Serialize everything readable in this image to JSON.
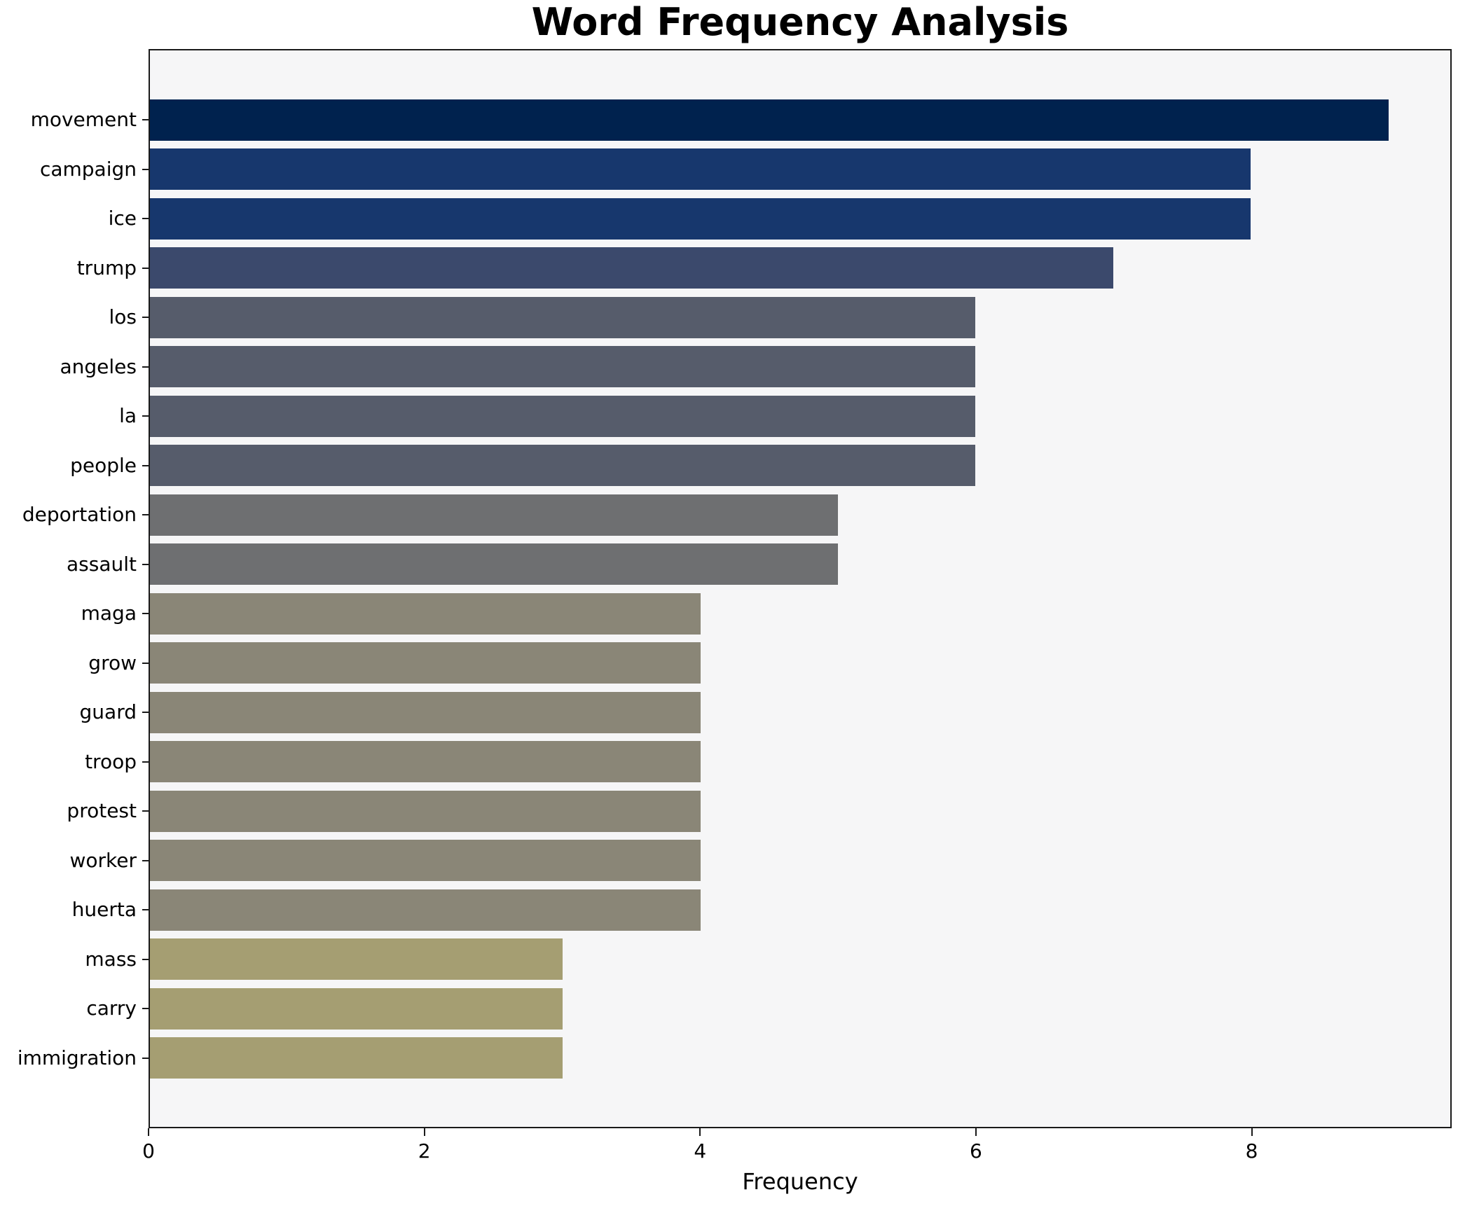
{
  "chart_data": {
    "type": "bar",
    "orientation": "horizontal",
    "title": "Word Frequency Analysis",
    "xlabel": "Frequency",
    "ylabel": "",
    "categories": [
      "movement",
      "campaign",
      "ice",
      "trump",
      "los",
      "angeles",
      "la",
      "people",
      "deportation",
      "assault",
      "maga",
      "grow",
      "guard",
      "troop",
      "protest",
      "worker",
      "huerta",
      "mass",
      "carry",
      "immigration"
    ],
    "values": [
      9,
      8,
      8,
      7,
      6,
      6,
      6,
      6,
      5,
      5,
      4,
      4,
      4,
      4,
      4,
      4,
      4,
      3,
      3,
      3
    ],
    "bar_colors": [
      "#00224e",
      "#17376d",
      "#17376d",
      "#3b496c",
      "#565c6b",
      "#565c6b",
      "#565c6b",
      "#565c6b",
      "#6e6f71",
      "#6e6f71",
      "#8a8677",
      "#8a8677",
      "#8a8677",
      "#8a8677",
      "#8a8677",
      "#8a8677",
      "#8a8677",
      "#a59e72",
      "#a59e72",
      "#a59e72"
    ],
    "xlim": [
      0,
      9.45
    ],
    "xticks": [
      0,
      2,
      4,
      6,
      8
    ],
    "grid": false,
    "legend": null,
    "colormap": "cividis",
    "bar_height_ratio": 0.8,
    "plot_background": "#f6f6f7",
    "figure_background": "#ffffff",
    "spine_color": "#1a1a1a",
    "text_color": "#000000"
  }
}
